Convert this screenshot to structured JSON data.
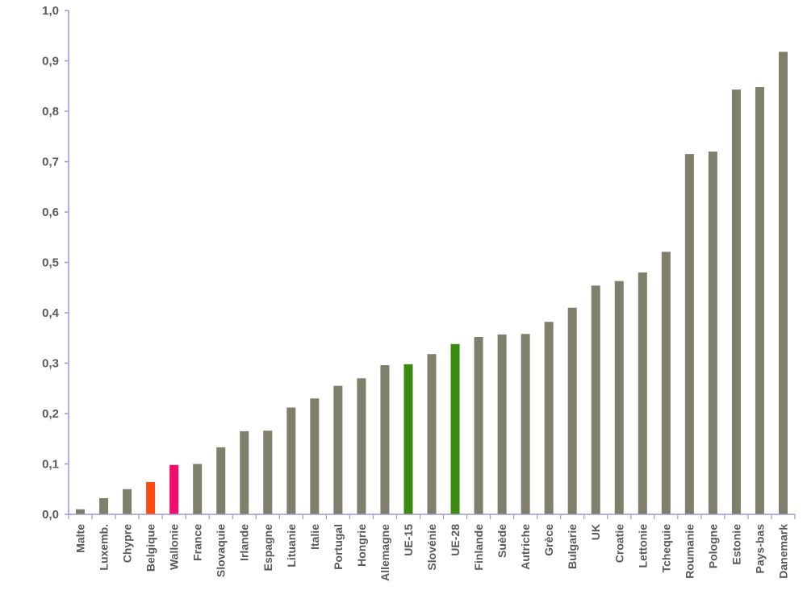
{
  "chart_data": {
    "type": "bar",
    "title": "",
    "xlabel": "",
    "ylabel": "",
    "ylim": [
      0,
      1.0
    ],
    "yticks": [
      "0,0",
      "0,1",
      "0,2",
      "0,3",
      "0,4",
      "0,5",
      "0,6",
      "0,7",
      "0,8",
      "0,9",
      "1,0"
    ],
    "grid": false,
    "legend": "none",
    "categories": [
      "Malte",
      "Luxemb.",
      "Chypre",
      "Belgique",
      "Wallonie",
      "France",
      "Slovaquie",
      "Irlande",
      "Espagne",
      "Lituanie",
      "Italie",
      "Portugal",
      "Hongrie",
      "Allemagne",
      "UE-15",
      "Slovénie",
      "UE-28",
      "Finlande",
      "Suède",
      "Autriche",
      "Grèce",
      "Bulgarie",
      "UK",
      "Croatie",
      "Lettonie",
      "Tchequie",
      "Roumanie",
      "Pologne",
      "Estonie",
      "Pays-bas",
      "Danemark"
    ],
    "values": [
      0.01,
      0.032,
      0.05,
      0.064,
      0.098,
      0.1,
      0.133,
      0.165,
      0.166,
      0.212,
      0.23,
      0.255,
      0.27,
      0.296,
      0.298,
      0.318,
      0.338,
      0.352,
      0.357,
      0.358,
      0.382,
      0.41,
      0.454,
      0.463,
      0.48,
      0.521,
      0.715,
      0.72,
      0.843,
      0.848,
      0.918
    ],
    "colors": {
      "default": "#7f7f6c",
      "Belgique": "#ff4a12",
      "Wallonie": "#f20c6b",
      "UE-15": "#3a8a10",
      "UE-28": "#3a8a10"
    },
    "axis_color": "#9a9ad0"
  }
}
